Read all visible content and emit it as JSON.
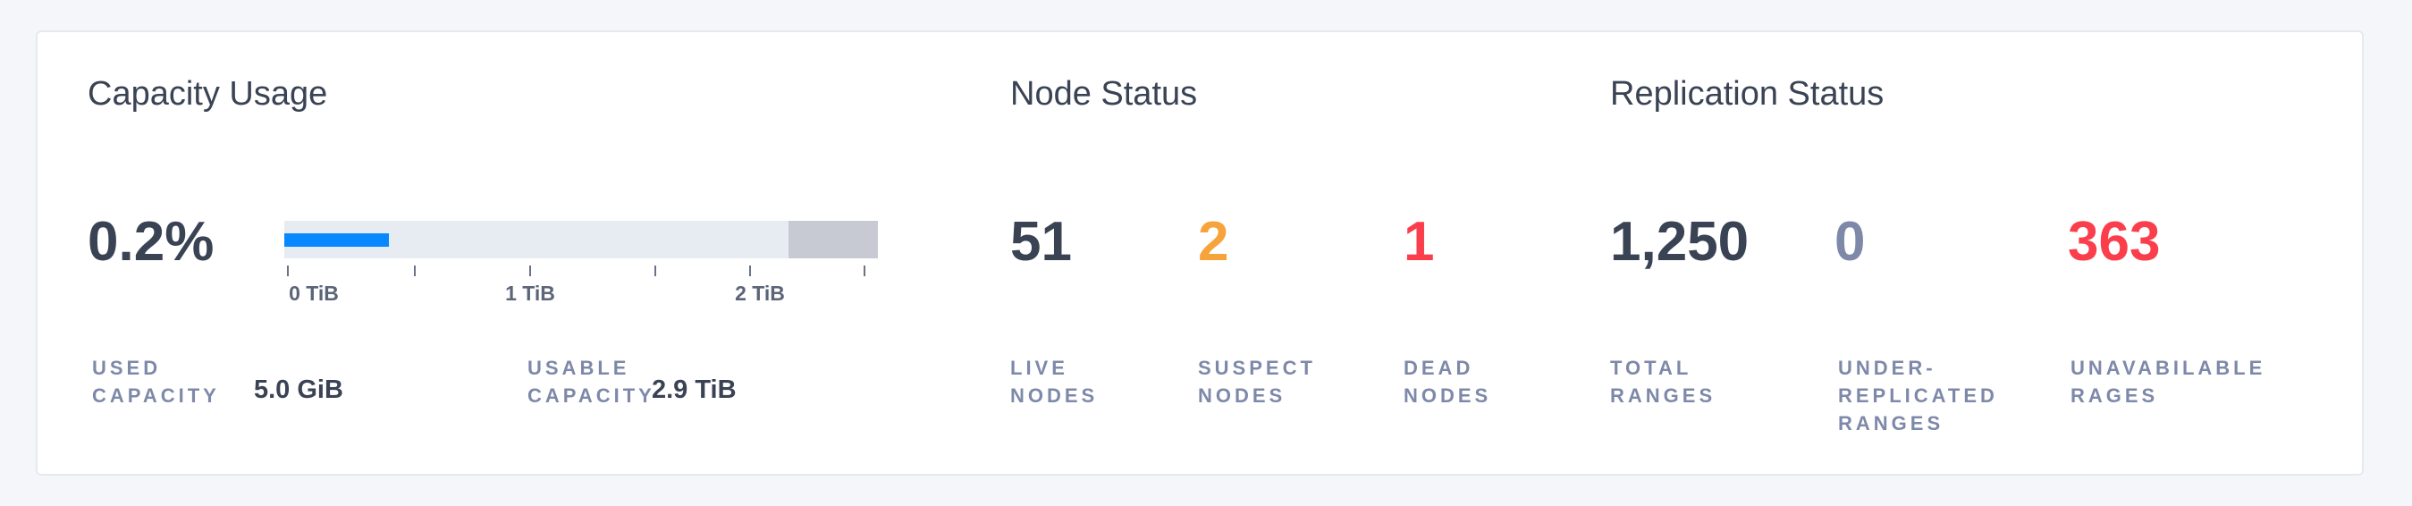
{
  "capacity": {
    "title": "Capacity Usage",
    "percent": "0.2%",
    "used_fraction": 0.002,
    "bar_ticks": [
      "0 TiB",
      "1 TiB",
      "2 TiB"
    ],
    "used_label": "USED\nCAPACITY",
    "used_value": "5.0 GiB",
    "usable_label": "USABLE\nCAPACITY",
    "usable_value": "2.9 TiB"
  },
  "node_status": {
    "title": "Node Status",
    "items": [
      {
        "value": "51",
        "label": "LIVE\nNODES",
        "color": "#3a4354"
      },
      {
        "value": "2",
        "label": "SUSPECT\nNODES",
        "color": "#f7a33b"
      },
      {
        "value": "1",
        "label": "DEAD\nNODES",
        "color": "#fa3e4c"
      }
    ]
  },
  "replication_status": {
    "title": "Replication Status",
    "items": [
      {
        "value": "1,250",
        "label": "TOTAL\nRANGES",
        "color": "#3a4354"
      },
      {
        "value": "0",
        "label": "UNDER-\nREPLICATED\nRANGES",
        "color": "#7e89a9"
      },
      {
        "value": "363",
        "label": "UNAVABILABLE\nRAGES",
        "color": "#fa3e4c"
      }
    ]
  },
  "colors": {
    "used_bar": "#0788ff",
    "reserved_bar": "#c8cad3",
    "track": "#e7ebf2"
  }
}
